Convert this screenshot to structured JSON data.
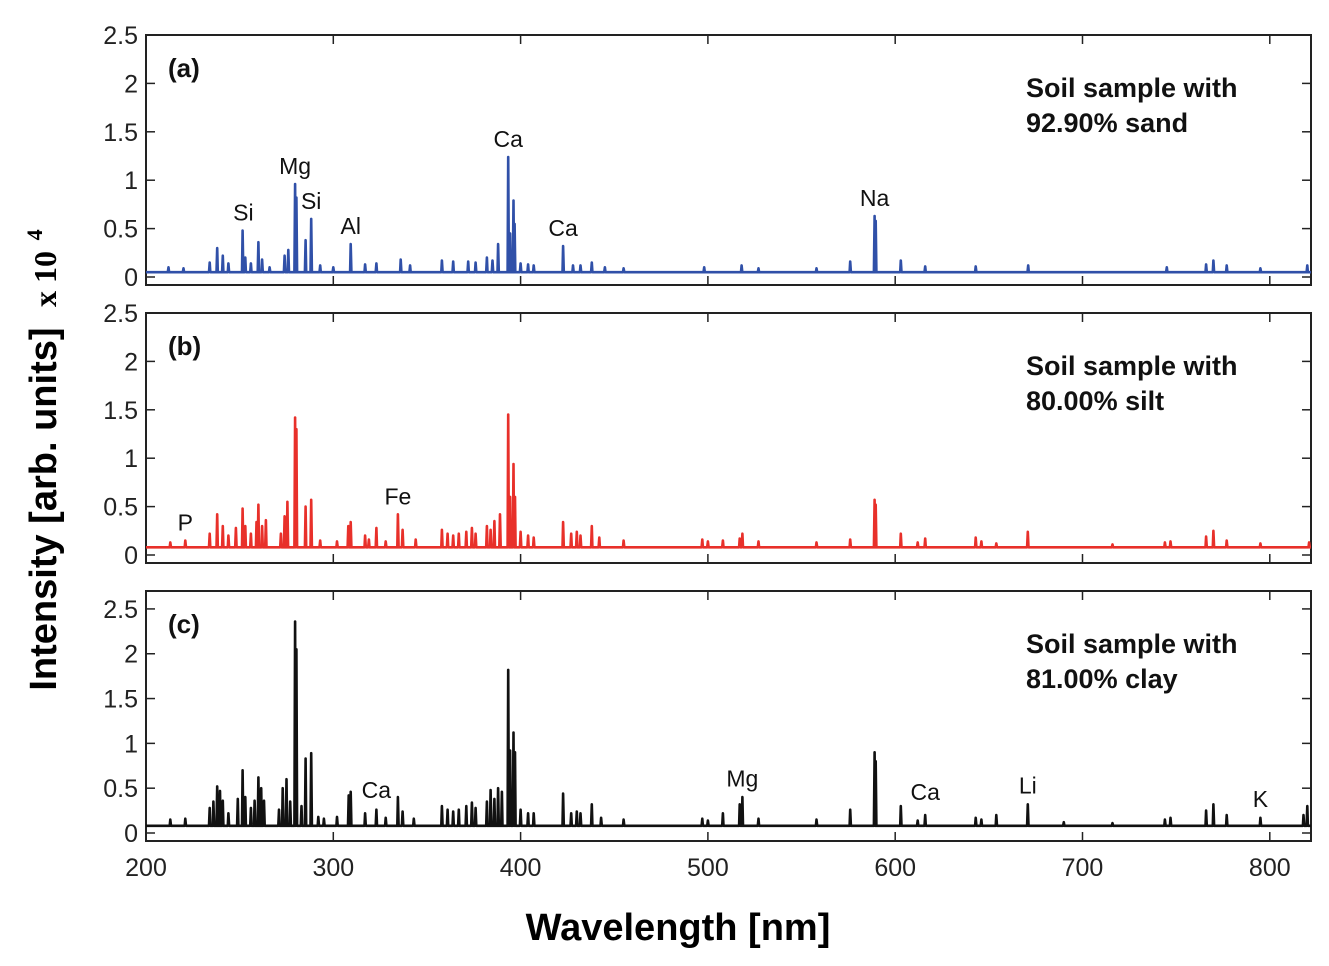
{
  "chart_data": [
    {
      "type": "line",
      "panel_label": "(a)",
      "sample_text": [
        "Soil sample with",
        "92.90% sand"
      ],
      "color": "#3050a8",
      "baseline": 0.05,
      "xlim": [
        200,
        822
      ],
      "ylim": [
        0,
        2.5
      ],
      "yticks": [
        "0",
        "0.5",
        "1",
        "1.5",
        "2",
        "2.5"
      ],
      "peaks": [
        {
          "x": 212,
          "y": 0.1
        },
        {
          "x": 220,
          "y": 0.09
        },
        {
          "x": 234,
          "y": 0.15
        },
        {
          "x": 238,
          "y": 0.3
        },
        {
          "x": 241,
          "y": 0.22
        },
        {
          "x": 244,
          "y": 0.14
        },
        {
          "x": 251.6,
          "y": 0.48
        },
        {
          "x": 253,
          "y": 0.2
        },
        {
          "x": 256,
          "y": 0.14
        },
        {
          "x": 260,
          "y": 0.36
        },
        {
          "x": 262,
          "y": 0.18
        },
        {
          "x": 266,
          "y": 0.1
        },
        {
          "x": 274,
          "y": 0.22
        },
        {
          "x": 276,
          "y": 0.28
        },
        {
          "x": 279.6,
          "y": 0.96
        },
        {
          "x": 280.3,
          "y": 0.82
        },
        {
          "x": 285.2,
          "y": 0.38
        },
        {
          "x": 288.2,
          "y": 0.6
        },
        {
          "x": 293,
          "y": 0.12
        },
        {
          "x": 300,
          "y": 0.1
        },
        {
          "x": 309.3,
          "y": 0.34
        },
        {
          "x": 317,
          "y": 0.13
        },
        {
          "x": 323,
          "y": 0.14
        },
        {
          "x": 336,
          "y": 0.18
        },
        {
          "x": 341,
          "y": 0.12
        },
        {
          "x": 358,
          "y": 0.17
        },
        {
          "x": 364,
          "y": 0.16
        },
        {
          "x": 372,
          "y": 0.16
        },
        {
          "x": 376,
          "y": 0.15
        },
        {
          "x": 382,
          "y": 0.2
        },
        {
          "x": 385,
          "y": 0.17
        },
        {
          "x": 388,
          "y": 0.34
        },
        {
          "x": 393.4,
          "y": 1.24
        },
        {
          "x": 394.4,
          "y": 0.45
        },
        {
          "x": 396.2,
          "y": 0.79
        },
        {
          "x": 396.8,
          "y": 0.55
        },
        {
          "x": 400,
          "y": 0.14
        },
        {
          "x": 404,
          "y": 0.13
        },
        {
          "x": 407,
          "y": 0.12
        },
        {
          "x": 422.7,
          "y": 0.32
        },
        {
          "x": 428,
          "y": 0.12
        },
        {
          "x": 432,
          "y": 0.12
        },
        {
          "x": 438,
          "y": 0.15
        },
        {
          "x": 445,
          "y": 0.1
        },
        {
          "x": 455,
          "y": 0.09
        },
        {
          "x": 498,
          "y": 0.1
        },
        {
          "x": 518,
          "y": 0.12
        },
        {
          "x": 527,
          "y": 0.09
        },
        {
          "x": 558,
          "y": 0.09
        },
        {
          "x": 576,
          "y": 0.16
        },
        {
          "x": 589,
          "y": 0.63
        },
        {
          "x": 589.6,
          "y": 0.58
        },
        {
          "x": 603,
          "y": 0.17
        },
        {
          "x": 616,
          "y": 0.11
        },
        {
          "x": 643,
          "y": 0.11
        },
        {
          "x": 671,
          "y": 0.12
        },
        {
          "x": 745,
          "y": 0.1
        },
        {
          "x": 766,
          "y": 0.13
        },
        {
          "x": 769.9,
          "y": 0.17
        },
        {
          "x": 777,
          "y": 0.12
        },
        {
          "x": 795,
          "y": 0.09
        },
        {
          "x": 820,
          "y": 0.12
        }
      ],
      "annotations": [
        {
          "text": "Si",
          "x": 252,
          "y": 0.5
        },
        {
          "text": "Mg",
          "x": 279.6,
          "y": 0.98
        },
        {
          "text": "Si",
          "x": 288.2,
          "y": 0.62
        },
        {
          "text": "Al",
          "x": 309.3,
          "y": 0.36
        },
        {
          "text": "Ca",
          "x": 393.4,
          "y": 1.26
        },
        {
          "text": "Ca",
          "x": 422.7,
          "y": 0.34
        },
        {
          "text": "Na",
          "x": 589,
          "y": 0.65
        }
      ]
    },
    {
      "type": "line",
      "panel_label": "(b)",
      "sample_text": [
        "Soil sample with",
        "80.00% silt"
      ],
      "color": "#e8302a",
      "baseline": 0.08,
      "xlim": [
        200,
        822
      ],
      "ylim": [
        0,
        2.5
      ],
      "yticks": [
        "0",
        "0.5",
        "1",
        "1.5",
        "2",
        "2.5"
      ],
      "peaks": [
        {
          "x": 213,
          "y": 0.13
        },
        {
          "x": 221,
          "y": 0.15
        },
        {
          "x": 234,
          "y": 0.22
        },
        {
          "x": 238,
          "y": 0.42
        },
        {
          "x": 241,
          "y": 0.3
        },
        {
          "x": 244,
          "y": 0.2
        },
        {
          "x": 248,
          "y": 0.28
        },
        {
          "x": 251.6,
          "y": 0.48
        },
        {
          "x": 253,
          "y": 0.3
        },
        {
          "x": 256,
          "y": 0.22
        },
        {
          "x": 259,
          "y": 0.34
        },
        {
          "x": 260,
          "y": 0.52
        },
        {
          "x": 262,
          "y": 0.3
        },
        {
          "x": 264,
          "y": 0.36
        },
        {
          "x": 272,
          "y": 0.22
        },
        {
          "x": 274,
          "y": 0.4
        },
        {
          "x": 275.5,
          "y": 0.55
        },
        {
          "x": 279.6,
          "y": 1.42
        },
        {
          "x": 280.3,
          "y": 1.3
        },
        {
          "x": 285.2,
          "y": 0.5
        },
        {
          "x": 288.2,
          "y": 0.57
        },
        {
          "x": 293,
          "y": 0.15
        },
        {
          "x": 302,
          "y": 0.14
        },
        {
          "x": 308,
          "y": 0.3
        },
        {
          "x": 309.3,
          "y": 0.34
        },
        {
          "x": 317,
          "y": 0.2
        },
        {
          "x": 319,
          "y": 0.16
        },
        {
          "x": 323,
          "y": 0.28
        },
        {
          "x": 328,
          "y": 0.14
        },
        {
          "x": 334.5,
          "y": 0.42
        },
        {
          "x": 337,
          "y": 0.26
        },
        {
          "x": 344,
          "y": 0.16
        },
        {
          "x": 358,
          "y": 0.26
        },
        {
          "x": 361,
          "y": 0.22
        },
        {
          "x": 364,
          "y": 0.2
        },
        {
          "x": 367,
          "y": 0.22
        },
        {
          "x": 371,
          "y": 0.24
        },
        {
          "x": 374,
          "y": 0.28
        },
        {
          "x": 376,
          "y": 0.22
        },
        {
          "x": 382,
          "y": 0.3
        },
        {
          "x": 384,
          "y": 0.26
        },
        {
          "x": 386,
          "y": 0.35
        },
        {
          "x": 389,
          "y": 0.42
        },
        {
          "x": 393.4,
          "y": 1.45
        },
        {
          "x": 394.4,
          "y": 0.6
        },
        {
          "x": 396.2,
          "y": 0.94
        },
        {
          "x": 397,
          "y": 0.6
        },
        {
          "x": 400,
          "y": 0.24
        },
        {
          "x": 404,
          "y": 0.2
        },
        {
          "x": 407,
          "y": 0.18
        },
        {
          "x": 422.7,
          "y": 0.34
        },
        {
          "x": 427,
          "y": 0.22
        },
        {
          "x": 430,
          "y": 0.24
        },
        {
          "x": 432,
          "y": 0.2
        },
        {
          "x": 438,
          "y": 0.3
        },
        {
          "x": 442,
          "y": 0.18
        },
        {
          "x": 455,
          "y": 0.15
        },
        {
          "x": 497,
          "y": 0.16
        },
        {
          "x": 500,
          "y": 0.14
        },
        {
          "x": 508,
          "y": 0.15
        },
        {
          "x": 517,
          "y": 0.17
        },
        {
          "x": 518.4,
          "y": 0.22
        },
        {
          "x": 527,
          "y": 0.14
        },
        {
          "x": 558,
          "y": 0.13
        },
        {
          "x": 576,
          "y": 0.16
        },
        {
          "x": 589,
          "y": 0.57
        },
        {
          "x": 589.6,
          "y": 0.52
        },
        {
          "x": 603,
          "y": 0.22
        },
        {
          "x": 612,
          "y": 0.13
        },
        {
          "x": 616,
          "y": 0.17
        },
        {
          "x": 643,
          "y": 0.18
        },
        {
          "x": 646,
          "y": 0.14
        },
        {
          "x": 654,
          "y": 0.12
        },
        {
          "x": 670.8,
          "y": 0.24
        },
        {
          "x": 716,
          "y": 0.11
        },
        {
          "x": 744,
          "y": 0.13
        },
        {
          "x": 747,
          "y": 0.14
        },
        {
          "x": 766,
          "y": 0.19
        },
        {
          "x": 769.9,
          "y": 0.25
        },
        {
          "x": 777,
          "y": 0.15
        },
        {
          "x": 795,
          "y": 0.12
        },
        {
          "x": 821,
          "y": 0.13
        }
      ],
      "annotations": [
        {
          "text": "P",
          "x": 221,
          "y": 0.17
        },
        {
          "text": "Fe",
          "x": 334.5,
          "y": 0.44
        }
      ]
    },
    {
      "type": "line",
      "panel_label": "(c)",
      "sample_text": [
        "Soil sample with",
        "81.00% clay"
      ],
      "color": "#111111",
      "baseline": 0.08,
      "xlim": [
        200,
        822
      ],
      "ylim": [
        0,
        2.7
      ],
      "yticks": [
        "0",
        "0.5",
        "1",
        "1.5",
        "2",
        "2.5"
      ],
      "peaks": [
        {
          "x": 213,
          "y": 0.15
        },
        {
          "x": 221,
          "y": 0.16
        },
        {
          "x": 234,
          "y": 0.28
        },
        {
          "x": 236,
          "y": 0.35
        },
        {
          "x": 238,
          "y": 0.52
        },
        {
          "x": 239.5,
          "y": 0.47
        },
        {
          "x": 241,
          "y": 0.36
        },
        {
          "x": 244,
          "y": 0.22
        },
        {
          "x": 249,
          "y": 0.38
        },
        {
          "x": 251.6,
          "y": 0.7
        },
        {
          "x": 253,
          "y": 0.4
        },
        {
          "x": 256,
          "y": 0.28
        },
        {
          "x": 258,
          "y": 0.36
        },
        {
          "x": 260,
          "y": 0.62
        },
        {
          "x": 261.5,
          "y": 0.5
        },
        {
          "x": 263,
          "y": 0.36
        },
        {
          "x": 271,
          "y": 0.26
        },
        {
          "x": 273,
          "y": 0.5
        },
        {
          "x": 275,
          "y": 0.6
        },
        {
          "x": 277,
          "y": 0.35
        },
        {
          "x": 279.6,
          "y": 2.36
        },
        {
          "x": 280.3,
          "y": 2.05
        },
        {
          "x": 283,
          "y": 0.3
        },
        {
          "x": 285.2,
          "y": 0.83
        },
        {
          "x": 288.2,
          "y": 0.89
        },
        {
          "x": 292,
          "y": 0.18
        },
        {
          "x": 295,
          "y": 0.16
        },
        {
          "x": 302,
          "y": 0.18
        },
        {
          "x": 308.2,
          "y": 0.42
        },
        {
          "x": 309.3,
          "y": 0.46
        },
        {
          "x": 317,
          "y": 0.22
        },
        {
          "x": 323,
          "y": 0.26
        },
        {
          "x": 328,
          "y": 0.17
        },
        {
          "x": 334.5,
          "y": 0.4
        },
        {
          "x": 337,
          "y": 0.24
        },
        {
          "x": 343,
          "y": 0.16
        },
        {
          "x": 358,
          "y": 0.3
        },
        {
          "x": 361,
          "y": 0.26
        },
        {
          "x": 364,
          "y": 0.24
        },
        {
          "x": 367,
          "y": 0.26
        },
        {
          "x": 371,
          "y": 0.3
        },
        {
          "x": 374,
          "y": 0.34
        },
        {
          "x": 376,
          "y": 0.28
        },
        {
          "x": 382,
          "y": 0.35
        },
        {
          "x": 384,
          "y": 0.48
        },
        {
          "x": 386,
          "y": 0.38
        },
        {
          "x": 388,
          "y": 0.5
        },
        {
          "x": 390,
          "y": 0.46
        },
        {
          "x": 393.4,
          "y": 1.82
        },
        {
          "x": 394.4,
          "y": 0.92
        },
        {
          "x": 396.2,
          "y": 1.12
        },
        {
          "x": 397,
          "y": 0.9
        },
        {
          "x": 400,
          "y": 0.26
        },
        {
          "x": 404,
          "y": 0.22
        },
        {
          "x": 407,
          "y": 0.22
        },
        {
          "x": 422.7,
          "y": 0.44
        },
        {
          "x": 427,
          "y": 0.22
        },
        {
          "x": 430,
          "y": 0.24
        },
        {
          "x": 432,
          "y": 0.22
        },
        {
          "x": 438,
          "y": 0.32
        },
        {
          "x": 443,
          "y": 0.17
        },
        {
          "x": 455,
          "y": 0.15
        },
        {
          "x": 497,
          "y": 0.16
        },
        {
          "x": 500,
          "y": 0.14
        },
        {
          "x": 508,
          "y": 0.22
        },
        {
          "x": 517,
          "y": 0.32
        },
        {
          "x": 518.4,
          "y": 0.4
        },
        {
          "x": 527,
          "y": 0.16
        },
        {
          "x": 558,
          "y": 0.15
        },
        {
          "x": 576,
          "y": 0.26
        },
        {
          "x": 589,
          "y": 0.9
        },
        {
          "x": 589.6,
          "y": 0.8
        },
        {
          "x": 603,
          "y": 0.3
        },
        {
          "x": 612,
          "y": 0.14
        },
        {
          "x": 616,
          "y": 0.2
        },
        {
          "x": 643,
          "y": 0.17
        },
        {
          "x": 646,
          "y": 0.15
        },
        {
          "x": 654,
          "y": 0.2
        },
        {
          "x": 670.8,
          "y": 0.32
        },
        {
          "x": 690,
          "y": 0.12
        },
        {
          "x": 716,
          "y": 0.11
        },
        {
          "x": 744,
          "y": 0.15
        },
        {
          "x": 747,
          "y": 0.17
        },
        {
          "x": 766,
          "y": 0.25
        },
        {
          "x": 769.9,
          "y": 0.32
        },
        {
          "x": 777,
          "y": 0.2
        },
        {
          "x": 795,
          "y": 0.17
        },
        {
          "x": 818,
          "y": 0.2
        },
        {
          "x": 820,
          "y": 0.3
        }
      ],
      "annotations": [
        {
          "text": "Ca",
          "x": 323,
          "y": 0.3
        },
        {
          "text": "Mg",
          "x": 518.4,
          "y": 0.43
        },
        {
          "text": "Ca",
          "x": 616,
          "y": 0.28
        },
        {
          "text": "Li",
          "x": 670.8,
          "y": 0.35
        },
        {
          "text": "K",
          "x": 795,
          "y": 0.2
        }
      ]
    }
  ],
  "xticks": [
    "200",
    "300",
    "400",
    "500",
    "600",
    "700",
    "800"
  ],
  "xlabel": "Wavelength [nm]",
  "ylabel": "Intensity [arb. units]",
  "ylabel_unit": "x 10",
  "ylabel_exp": "4"
}
